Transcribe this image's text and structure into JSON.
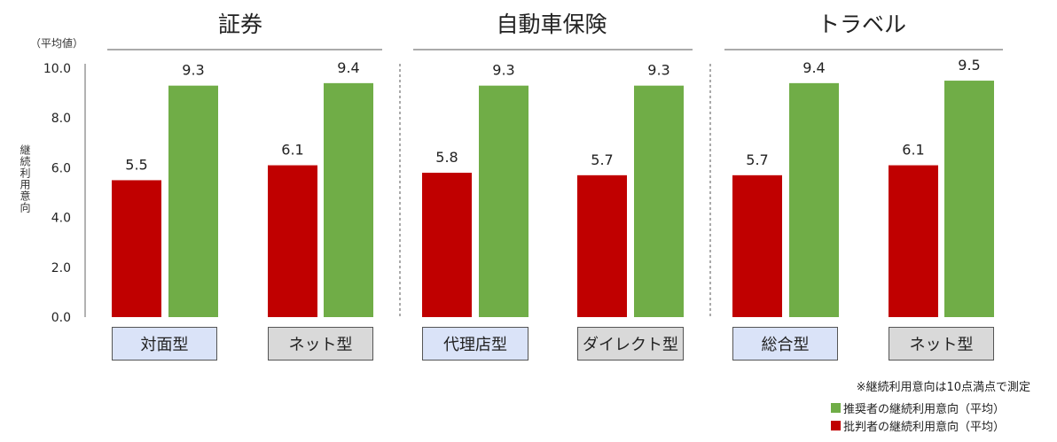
{
  "unit_label": "（平均値）",
  "ylabel": "継続利用意向",
  "note": "※継続利用意向は10点満点で測定",
  "legend": [
    {
      "label": "推奨者の継続利用意向（平均）",
      "color": "#70ad47"
    },
    {
      "label": "批判者の継続利用意向（平均）",
      "color": "#c00000"
    }
  ],
  "groups": [
    "証券",
    "自動車保険",
    "トラベル"
  ],
  "categories": [
    "対面型",
    "ネット型",
    "代理店型",
    "ダイレクト型",
    "総合型",
    "ネット型"
  ],
  "chart_data": {
    "type": "bar",
    "ylim": [
      0,
      10
    ],
    "yticks": [
      "0.0",
      "2.0",
      "4.0",
      "6.0",
      "8.0",
      "10.0"
    ],
    "categories": [
      "対面型",
      "ネット型",
      "代理店型",
      "ダイレクト型",
      "総合型",
      "ネット型"
    ],
    "series": [
      {
        "name": "批判者の継続利用意向（平均）",
        "color": "#c00000",
        "values": [
          5.5,
          6.1,
          5.8,
          5.7,
          5.7,
          6.1
        ]
      },
      {
        "name": "推奨者の継続利用意向（平均）",
        "color": "#70ad47",
        "values": [
          9.3,
          9.4,
          9.3,
          9.3,
          9.4,
          9.5
        ]
      }
    ]
  }
}
